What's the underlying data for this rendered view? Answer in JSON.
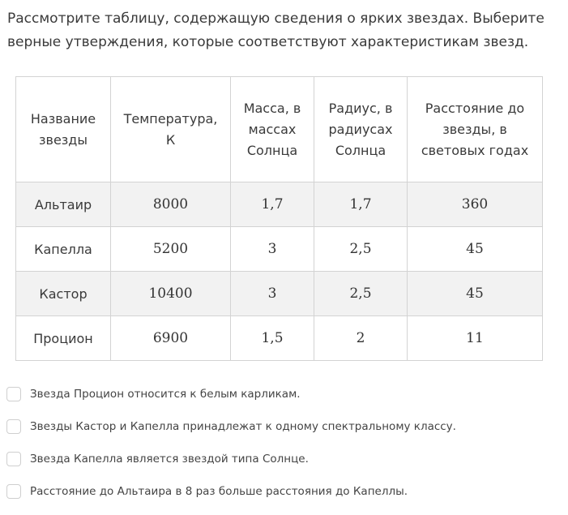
{
  "question": "Рассмотрите таблицу, содержащую сведения о ярких звездах. Выберите верные утверждения, которые соответствуют характеристикам звезд.",
  "table": {
    "headers": [
      "Название звезды",
      "Температура, К",
      "Масса, в массах Солнца",
      "Радиус, в радиусах Солнца",
      "Расстояние до звезды, в световых годах"
    ],
    "rows": [
      [
        "Альтаир",
        "8000",
        "1,7",
        "1,7",
        "360"
      ],
      [
        "Капелла",
        "5200",
        "3",
        "2,5",
        "45"
      ],
      [
        "Кастор",
        "10400",
        "3",
        "2,5",
        "45"
      ],
      [
        "Процион",
        "6900",
        "1,5",
        "2",
        "11"
      ]
    ]
  },
  "options": [
    {
      "label": "Звезда Процион относится к белым карликам.",
      "checked": false
    },
    {
      "label": "Звезды Кастор и Капелла принадлежат к одному спектральному классу.",
      "checked": false
    },
    {
      "label": "Звезда Капелла является звездой типа Солнце.",
      "checked": false
    },
    {
      "label": "Расстояние до Альтаира в 8 раз больше расстояния до Капеллы.",
      "checked": false
    }
  ],
  "colors": {
    "text": "#3a3a3a",
    "border": "#d3d3d3",
    "row_stripe": "#f2f2f2",
    "checkbox_border": "#cfcfcf"
  }
}
